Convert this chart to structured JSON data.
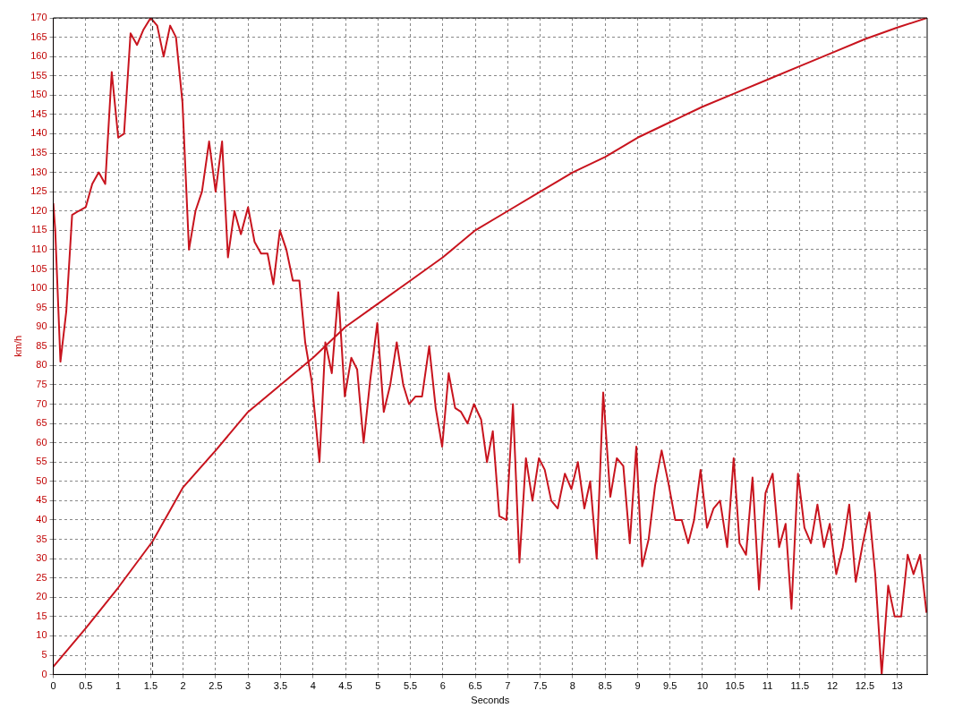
{
  "chart_data": {
    "type": "line",
    "xlabel": "Seconds",
    "ylabel": "km/h",
    "xlim": [
      0,
      13.46
    ],
    "ylim": [
      0,
      170
    ],
    "xticks": [
      0,
      0.5,
      1,
      1.5,
      2,
      2.5,
      3,
      3.5,
      4,
      4.5,
      5,
      5.5,
      6,
      6.5,
      7,
      7.5,
      8,
      8.5,
      9,
      9.5,
      10,
      10.5,
      11,
      11.5,
      12,
      12.5,
      13
    ],
    "yticks": [
      0,
      5,
      10,
      15,
      20,
      25,
      30,
      35,
      40,
      45,
      50,
      55,
      60,
      65,
      70,
      75,
      80,
      85,
      90,
      95,
      100,
      105,
      110,
      115,
      120,
      125,
      130,
      135,
      140,
      145,
      150,
      155,
      160,
      165,
      170
    ],
    "grid": true,
    "legend": false,
    "marker": "none",
    "line_style": "solid",
    "ref_lines": [
      {
        "axis": "x",
        "value": 1.53,
        "color": "#333333",
        "line_style": "dashed"
      }
    ],
    "series": [
      {
        "color": "#c8141e",
        "x": [
          0,
          0.03,
          0.11,
          0.2,
          0.29,
          0.39,
          0.5,
          0.6,
          0.7,
          0.8,
          0.9,
          1.0,
          1.09,
          1.19,
          1.29,
          1.39,
          1.5,
          1.6,
          1.7,
          1.8,
          1.89,
          1.99,
          2.09,
          2.19,
          2.29,
          2.4,
          2.5,
          2.6,
          2.69,
          2.79,
          2.89,
          3.0,
          3.1,
          3.2,
          3.3,
          3.39,
          3.49,
          3.59,
          3.69,
          3.79,
          3.88,
          3.98,
          4.1,
          4.19,
          4.29,
          4.39,
          4.49,
          4.59,
          4.68,
          4.78,
          4.88,
          4.99,
          5.09,
          5.19,
          5.29,
          5.39,
          5.48,
          5.58,
          5.68,
          5.79,
          5.89,
          5.99,
          6.09,
          6.19,
          6.28,
          6.38,
          6.48,
          6.59,
          6.68,
          6.77,
          6.87,
          6.98,
          7.08,
          7.18,
          7.28,
          7.38,
          7.48,
          7.57,
          7.67,
          7.77,
          7.88,
          7.98,
          8.08,
          8.18,
          8.27,
          8.37,
          8.47,
          8.58,
          8.68,
          8.78,
          8.88,
          8.98,
          9.07,
          9.17,
          9.27,
          9.37,
          9.47,
          9.58,
          9.68,
          9.78,
          9.87,
          9.97,
          10.07,
          10.17,
          10.27,
          10.38,
          10.48,
          10.57,
          10.67,
          10.77,
          10.87,
          10.97,
          11.08,
          11.18,
          11.28,
          11.37,
          11.47,
          11.57,
          11.67,
          11.77,
          11.87,
          11.96,
          12.06,
          12.16,
          12.26,
          12.36,
          12.47,
          12.57,
          12.66,
          12.76,
          12.86,
          12.96,
          13.06,
          13.16,
          13.25,
          13.35,
          13.45
        ],
        "values": [
          122,
          115,
          81,
          94,
          119,
          120,
          121,
          127,
          130,
          127,
          156,
          139,
          140,
          166,
          163,
          167,
          170,
          168,
          160,
          168,
          165,
          148,
          110,
          120,
          125,
          138,
          125,
          138,
          108,
          120,
          114,
          121,
          112,
          109,
          109,
          101,
          115,
          110,
          102,
          102,
          86,
          76,
          55,
          86,
          78,
          99,
          72,
          82,
          79,
          60,
          76,
          91,
          68,
          75,
          86,
          75,
          70,
          72,
          72,
          85,
          69,
          59,
          78,
          69,
          68,
          65,
          70,
          66,
          55,
          63,
          41,
          40,
          70,
          29,
          56,
          45,
          56,
          53,
          45,
          43,
          52,
          48,
          55,
          43,
          50,
          30,
          73,
          46,
          56,
          54,
          34,
          59,
          28,
          35,
          49,
          58,
          50,
          40,
          40,
          34,
          40,
          53,
          38,
          43,
          45,
          33,
          56,
          34,
          31,
          51,
          22,
          47,
          52,
          33,
          39,
          17,
          52,
          38,
          34,
          44,
          33,
          39,
          26,
          33,
          44,
          24,
          34,
          42,
          26,
          0,
          23,
          15,
          15,
          31,
          26,
          31,
          16
        ]
      },
      {
        "color": "#c8141e",
        "x": [
          0,
          0.5,
          1,
          1.53,
          2,
          2.5,
          3,
          3.5,
          4,
          4.5,
          5,
          5.5,
          6,
          6.5,
          7,
          7.5,
          8,
          8.5,
          9,
          9.5,
          10,
          10.5,
          11,
          11.5,
          12,
          12.5,
          13,
          13.46
        ],
        "values": [
          2,
          12,
          22.5,
          34.5,
          48.5,
          58,
          68,
          75,
          82,
          90,
          96,
          102,
          108,
          115,
          120,
          125,
          130,
          134,
          139,
          143,
          147,
          150.5,
          154,
          157.5,
          161,
          164.5,
          167.5,
          170
        ]
      }
    ]
  }
}
